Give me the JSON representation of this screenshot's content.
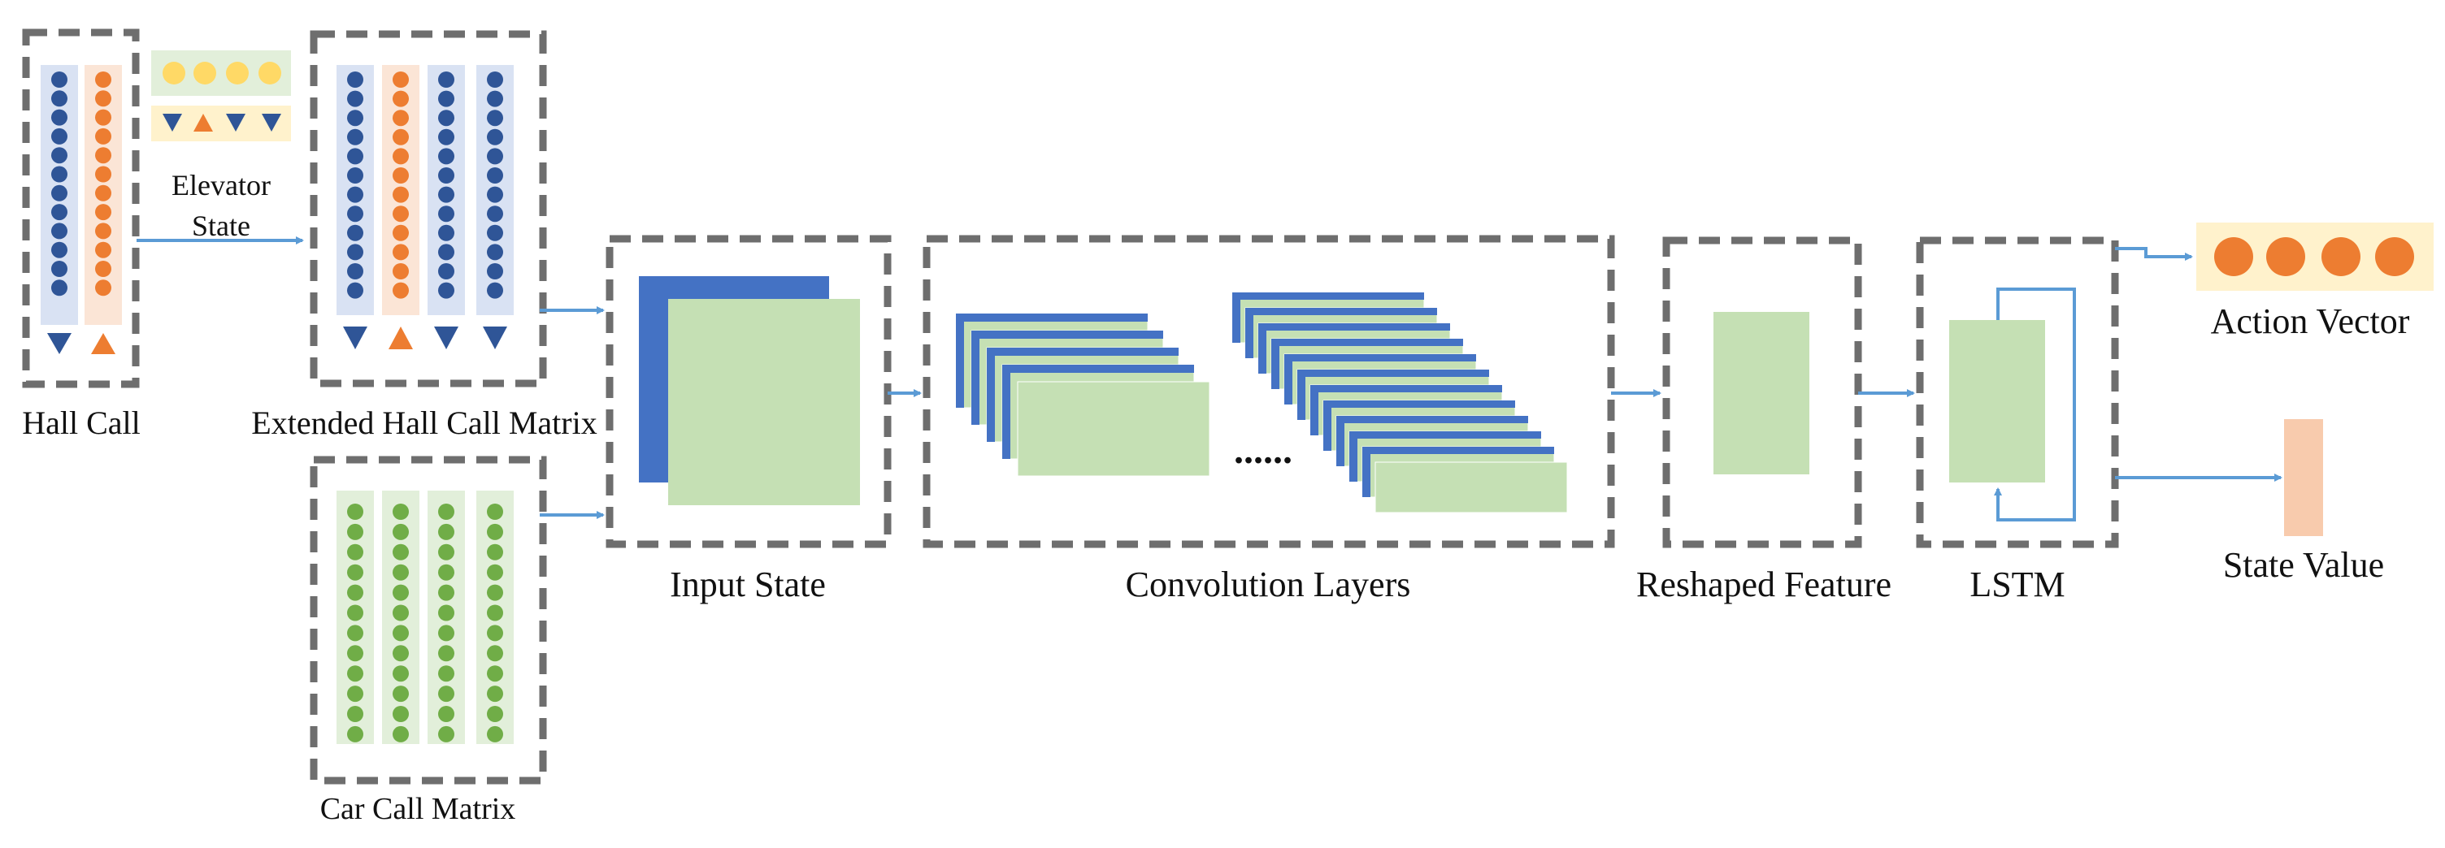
{
  "labels": {
    "hall_call": "Hall Call",
    "elevator_state_line1": "Elevator",
    "elevator_state_line2": "State",
    "extended_hall_call_matrix": "Extended Hall Call Matrix",
    "car_call_matrix": "Car Call Matrix",
    "input_state": "Input State",
    "convolution_layers": "Convolution Layers",
    "ellipsis": "......",
    "reshaped_feature": "Reshaped Feature",
    "lstm": "LSTM",
    "action_vector": "Action Vector",
    "state_value": "State Value"
  },
  "colors": {
    "blue_dot": "#2f5597",
    "orange_dot": "#ed7d31",
    "green_dot": "#70ad47",
    "yellow_dot": "#ffd966",
    "blue_column": "#d9e2f3",
    "orange_column": "#fbe5d6",
    "green_column": "#e2efda",
    "yellow_panel": "#fff2cc",
    "feature_green": "#c5e0b4",
    "feature_blue": "#4472c4",
    "state_value_fill": "#f8cbad",
    "arrow": "#5b9bd5",
    "dashed_border": "#6e6e6e"
  },
  "icons": {
    "down_call": "down-triangle-icon",
    "up_call": "up-triangle-icon",
    "call_marker": "circle-dot-icon"
  }
}
